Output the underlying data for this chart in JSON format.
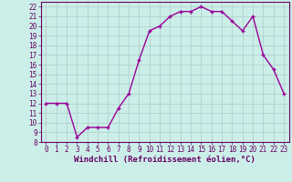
{
  "x": [
    0,
    1,
    2,
    3,
    4,
    5,
    6,
    7,
    8,
    9,
    10,
    11,
    12,
    13,
    14,
    15,
    16,
    17,
    18,
    19,
    20,
    21,
    22,
    23
  ],
  "y": [
    12,
    12,
    12,
    8.5,
    9.5,
    9.5,
    9.5,
    11.5,
    13,
    16.5,
    19.5,
    20,
    21,
    21.5,
    21.5,
    22,
    21.5,
    21.5,
    20.5,
    19.5,
    21,
    17,
    15.5,
    13
  ],
  "line_color": "#990099",
  "marker": "+",
  "bg_color": "#cceee8",
  "grid_color": "#aacccc",
  "xlabel": "Windchill (Refroidissement éolien,°C)",
  "xlabel_color": "#660066",
  "tick_color": "#660066",
  "ylim": [
    8,
    22.5
  ],
  "xlim": [
    -0.5,
    23.5
  ],
  "yticks": [
    8,
    9,
    10,
    11,
    12,
    13,
    14,
    15,
    16,
    17,
    18,
    19,
    20,
    21,
    22
  ],
  "xticks": [
    0,
    1,
    2,
    3,
    4,
    5,
    6,
    7,
    8,
    9,
    10,
    11,
    12,
    13,
    14,
    15,
    16,
    17,
    18,
    19,
    20,
    21,
    22,
    23
  ],
  "font_size": 5.5,
  "xlabel_font_size": 6.5,
  "marker_size": 3,
  "line_width": 1.0,
  "marker_edge_width": 1.0
}
